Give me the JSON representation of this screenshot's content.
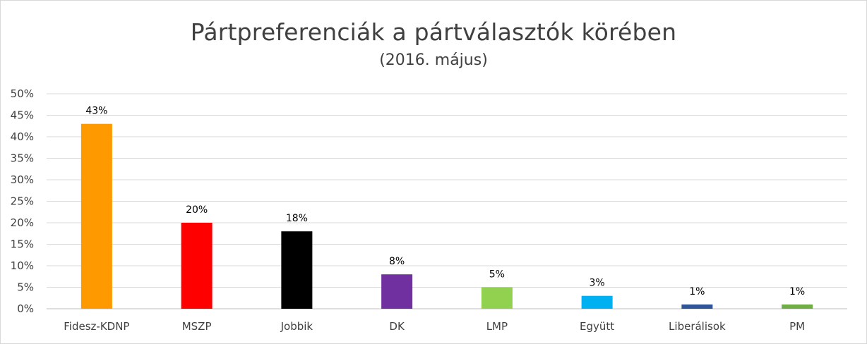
{
  "chart_data": {
    "type": "bar",
    "title": "Pártpreferenciák a pártválasztók körében",
    "subtitle": "(2016. május)",
    "categories": [
      "Fidesz-KDNP",
      "MSZP",
      "Jobbik",
      "DK",
      "LMP",
      "Együtt",
      "Liberálisok",
      "PM"
    ],
    "values": [
      43,
      20,
      18,
      8,
      5,
      3,
      1,
      1
    ],
    "data_labels": [
      "43%",
      "20%",
      "18%",
      "8%",
      "5%",
      "3%",
      "1%",
      "1%"
    ],
    "colors": [
      "#ff9900",
      "#ff0000",
      "#000000",
      "#7030a0",
      "#92d050",
      "#00b0f0",
      "#2f5597",
      "#70ad47"
    ],
    "y_ticks": [
      "0%",
      "5%",
      "10%",
      "15%",
      "20%",
      "25%",
      "30%",
      "35%",
      "40%",
      "45%",
      "50%"
    ],
    "ylim": [
      0,
      50
    ],
    "grid": true,
    "legend": "none"
  }
}
